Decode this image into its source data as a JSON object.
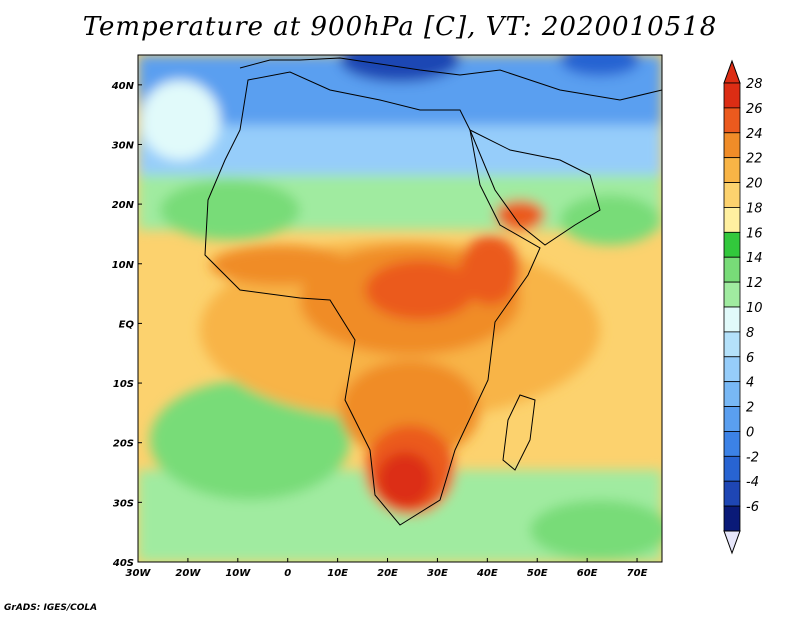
{
  "title": "Temperature at 900hPa [C], VT: 2020010518",
  "credit": "GrADS: IGES/COLA",
  "map": {
    "lon_range": [
      -30,
      75
    ],
    "lat_range": [
      -40,
      45
    ],
    "lon_ticks": [
      {
        "value": -30,
        "label": "30W"
      },
      {
        "value": -20,
        "label": "20W"
      },
      {
        "value": -10,
        "label": "10W"
      },
      {
        "value": 0,
        "label": "0"
      },
      {
        "value": 10,
        "label": "10E"
      },
      {
        "value": 20,
        "label": "20E"
      },
      {
        "value": 30,
        "label": "30E"
      },
      {
        "value": 40,
        "label": "40E"
      },
      {
        "value": 50,
        "label": "50E"
      },
      {
        "value": 60,
        "label": "60E"
      },
      {
        "value": 70,
        "label": "70E"
      }
    ],
    "lat_ticks": [
      {
        "value": 40,
        "label": "40N"
      },
      {
        "value": 30,
        "label": "30N"
      },
      {
        "value": 20,
        "label": "20N"
      },
      {
        "value": 10,
        "label": "10N"
      },
      {
        "value": 0,
        "label": "EQ"
      },
      {
        "value": -10,
        "label": "10S"
      },
      {
        "value": -20,
        "label": "20S"
      },
      {
        "value": -30,
        "label": "30S"
      },
      {
        "value": -40,
        "label": "40S"
      }
    ]
  },
  "colorbar": {
    "levels": [
      {
        "value": "-6",
        "color": "#0a1a78"
      },
      {
        "value": "-4",
        "color": "#1e46b4"
      },
      {
        "value": "-2",
        "color": "#2864d2"
      },
      {
        "value": "0",
        "color": "#3c82e6"
      },
      {
        "value": "2",
        "color": "#5a9ff0"
      },
      {
        "value": "4",
        "color": "#78b8f5"
      },
      {
        "value": "6",
        "color": "#96cdfa"
      },
      {
        "value": "8",
        "color": "#b4e1fa"
      },
      {
        "value": "10",
        "color": "#e1fafa"
      },
      {
        "value": "12",
        "color": "#a0eba0"
      },
      {
        "value": "14",
        "color": "#78dc78"
      },
      {
        "value": "16",
        "color": "#32c83c"
      },
      {
        "value": "18",
        "color": "#fff0a0"
      },
      {
        "value": "20",
        "color": "#fcd26e"
      },
      {
        "value": "22",
        "color": "#f8b446"
      },
      {
        "value": "24",
        "color": "#f08c28"
      },
      {
        "value": "26",
        "color": "#eb5a1e"
      },
      {
        "value": "28",
        "color": "#dc2d14"
      }
    ],
    "top_color": "#dc2d14",
    "bottom_color": "#e6e6fa"
  }
}
